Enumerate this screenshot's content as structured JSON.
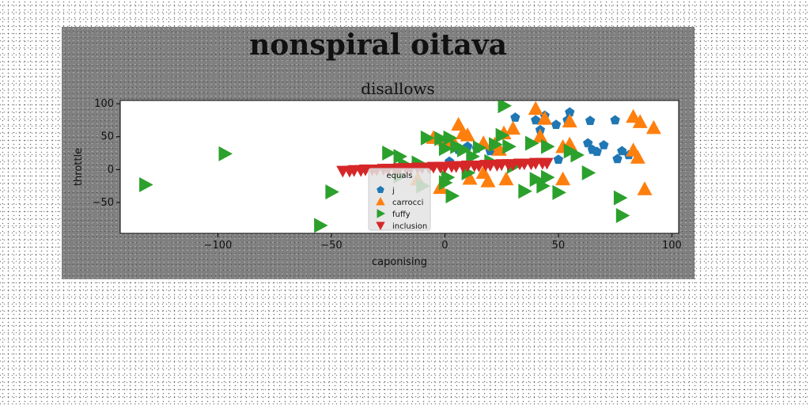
{
  "chart_data": {
    "type": "scatter",
    "suptitle": "nonspiral oitava",
    "title": "disallows",
    "xlabel": "caponising",
    "ylabel": "throttle",
    "xlim": [
      -143,
      103
    ],
    "ylim": [
      -97,
      105
    ],
    "xticks": [
      -100,
      -50,
      0,
      50,
      100
    ],
    "xtick_labels": [
      "−100",
      "−50",
      "0",
      "50",
      "100"
    ],
    "yticks": [
      -50,
      0,
      50,
      100
    ],
    "ytick_labels": [
      "−50",
      "0",
      "50",
      "100"
    ],
    "grid": false,
    "legend": {
      "title": "equals",
      "placement": "lower-center"
    },
    "series": [
      {
        "name": "j",
        "marker": "pentagon",
        "color": "#1f77b4",
        "points": [
          [
            31,
            79
          ],
          [
            40,
            75
          ],
          [
            42,
            60
          ],
          [
            49,
            68
          ],
          [
            54,
            75
          ],
          [
            55,
            87
          ],
          [
            63,
            40
          ],
          [
            64,
            74
          ],
          [
            65,
            30
          ],
          [
            67,
            27
          ],
          [
            70,
            37
          ],
          [
            75,
            75
          ],
          [
            76,
            16
          ],
          [
            78,
            28
          ],
          [
            81,
            22
          ],
          [
            50,
            15
          ],
          [
            6,
            30
          ],
          [
            10,
            35
          ],
          [
            14,
            32
          ],
          [
            2,
            12
          ],
          [
            20,
            28
          ],
          [
            44,
            82
          ]
        ]
      },
      {
        "name": "carrocci",
        "marker": "triangle-up",
        "color": "#ff7f0e",
        "points": [
          [
            6,
            68
          ],
          [
            10,
            52
          ],
          [
            4,
            40
          ],
          [
            17,
            40
          ],
          [
            22,
            38
          ],
          [
            26,
            55
          ],
          [
            40,
            92
          ],
          [
            44,
            77
          ],
          [
            52,
            34
          ],
          [
            55,
            38
          ],
          [
            55,
            73
          ],
          [
            83,
            80
          ],
          [
            86,
            72
          ],
          [
            92,
            63
          ],
          [
            83,
            29
          ],
          [
            85,
            18
          ],
          [
            88,
            -30
          ],
          [
            19,
            -18
          ],
          [
            27,
            -15
          ],
          [
            52,
            -15
          ],
          [
            11,
            -14
          ],
          [
            17,
            -5
          ],
          [
            -12,
            -15
          ],
          [
            -2,
            -28
          ],
          [
            0,
            45
          ],
          [
            30,
            62
          ],
          [
            24,
            30
          ],
          [
            42,
            50
          ],
          [
            -5,
            48
          ],
          [
            8,
            55
          ]
        ]
      },
      {
        "name": "fuffy",
        "marker": "triangle-right",
        "color": "#2ca02c",
        "points": [
          [
            -132,
            -23
          ],
          [
            -97,
            24
          ],
          [
            -55,
            -85
          ],
          [
            -50,
            -34
          ],
          [
            -25,
            25
          ],
          [
            -20,
            20
          ],
          [
            -12,
            10
          ],
          [
            -8,
            48
          ],
          [
            -2,
            47
          ],
          [
            2,
            48
          ],
          [
            0,
            32
          ],
          [
            5,
            35
          ],
          [
            8,
            30
          ],
          [
            15,
            33
          ],
          [
            22,
            38
          ],
          [
            25,
            52
          ],
          [
            26,
            97
          ],
          [
            28,
            35
          ],
          [
            35,
            -33
          ],
          [
            38,
            40
          ],
          [
            40,
            -15
          ],
          [
            43,
            -25
          ],
          [
            45,
            35
          ],
          [
            50,
            -35
          ],
          [
            55,
            28
          ],
          [
            58,
            22
          ],
          [
            63,
            -5
          ],
          [
            77,
            -43
          ],
          [
            78,
            -70
          ],
          [
            3,
            -40
          ],
          [
            0,
            -20
          ],
          [
            -10,
            -25
          ],
          [
            -20,
            -10
          ],
          [
            1,
            -12
          ],
          [
            10,
            -5
          ],
          [
            30,
            5
          ],
          [
            45,
            -12
          ],
          [
            20,
            12
          ],
          [
            -18,
            8
          ],
          [
            12,
            20
          ]
        ]
      },
      {
        "name": "inclusion",
        "marker": "triangle-down",
        "color": "#d62728",
        "points": [
          [
            -45,
            -2
          ],
          [
            -40,
            -1
          ],
          [
            -35,
            0
          ],
          [
            -30,
            0
          ],
          [
            -25,
            1
          ],
          [
            -20,
            2
          ],
          [
            -15,
            2
          ],
          [
            -10,
            3
          ],
          [
            -5,
            4
          ],
          [
            0,
            4
          ],
          [
            5,
            5
          ],
          [
            10,
            6
          ],
          [
            15,
            6
          ],
          [
            20,
            7
          ],
          [
            25,
            8
          ],
          [
            30,
            8
          ],
          [
            35,
            9
          ],
          [
            40,
            10
          ],
          [
            45,
            10
          ],
          [
            -42,
            -2
          ],
          [
            -37,
            -1
          ],
          [
            -32,
            0
          ],
          [
            -27,
            1
          ],
          [
            -22,
            1
          ],
          [
            -17,
            2
          ],
          [
            -12,
            3
          ],
          [
            -7,
            3
          ],
          [
            -2,
            4
          ],
          [
            3,
            5
          ],
          [
            8,
            5
          ],
          [
            13,
            6
          ],
          [
            18,
            7
          ],
          [
            23,
            7
          ],
          [
            28,
            8
          ],
          [
            33,
            9
          ],
          [
            38,
            9
          ],
          [
            43,
            10
          ]
        ]
      }
    ]
  }
}
